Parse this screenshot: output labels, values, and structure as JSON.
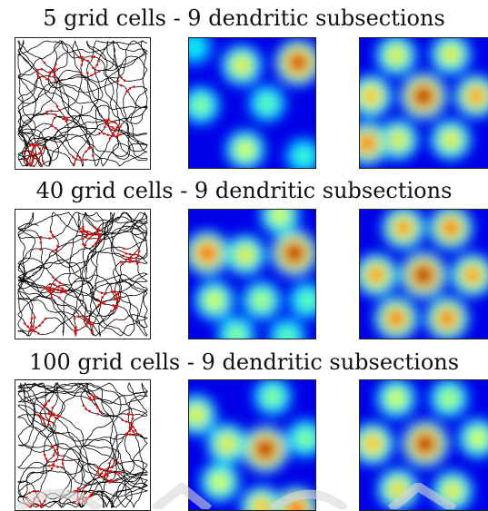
{
  "rows": [
    {
      "title": "5 grid cells - 9 dendritic subsections"
    },
    {
      "title": "40 grid cells - 9 dendritic subsections"
    },
    {
      "title": "100 grid cells - 9 dendritic subsections"
    }
  ],
  "colors": {
    "trajectory": "#000000",
    "spikes": "#e01010",
    "map_low": "#0a1a8c",
    "map_high": "#d01010"
  }
}
